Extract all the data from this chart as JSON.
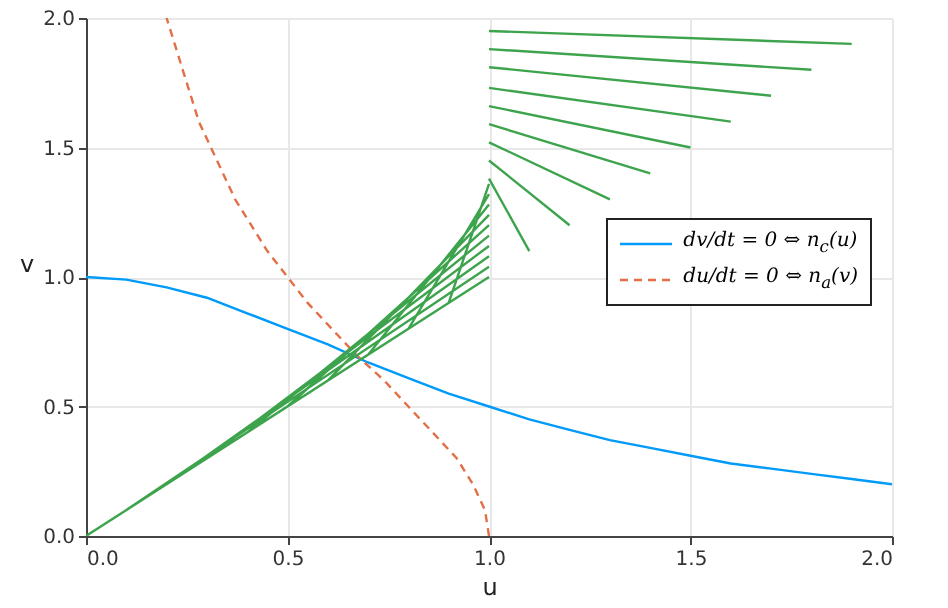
{
  "chart_data": {
    "type": "line",
    "xlabel": "u",
    "ylabel": "v",
    "xlim": [
      0,
      2
    ],
    "ylim": [
      0,
      2
    ],
    "xticks": [
      {
        "value": 0,
        "label": "0.0"
      },
      {
        "value": 0.5,
        "label": "0.5"
      },
      {
        "value": 1,
        "label": "1.0"
      },
      {
        "value": 1.5,
        "label": "1.5"
      },
      {
        "value": 2,
        "label": "2.0"
      }
    ],
    "yticks": [
      {
        "value": 0,
        "label": "0.0"
      },
      {
        "value": 0.5,
        "label": "0.5"
      },
      {
        "value": 1,
        "label": "1.0"
      },
      {
        "value": 1.5,
        "label": "1.5"
      },
      {
        "value": 2,
        "label": "2.0"
      }
    ],
    "grid": true,
    "legend": "right",
    "marker": "none",
    "series": [
      {
        "name": "dv/dt = 0 ⇔ n$_{c}$(u)",
        "color": "#009af9",
        "line_style": "solid",
        "x": [
          0,
          0.1,
          0.2,
          0.3,
          0.4,
          0.5,
          0.6,
          0.7,
          0.8,
          0.9,
          1.0,
          1.1,
          1.2,
          1.3,
          1.4,
          1.5,
          1.6,
          1.7,
          1.8,
          1.9,
          2.0
        ],
        "values": [
          1.0,
          0.99,
          0.96,
          0.92,
          0.86,
          0.8,
          0.74,
          0.67,
          0.61,
          0.55,
          0.5,
          0.45,
          0.41,
          0.37,
          0.34,
          0.31,
          0.28,
          0.26,
          0.24,
          0.22,
          0.2
        ]
      },
      {
        "name": "du/dt = 0 ⇔ n$_{a}$(v)",
        "color": "#e26f46",
        "line_style": "dashed",
        "x": [
          1.0,
          0.99,
          0.96,
          0.92,
          0.86,
          0.8,
          0.74,
          0.67,
          0.61,
          0.55,
          0.5,
          0.45,
          0.41,
          0.37,
          0.34,
          0.31,
          0.28,
          0.26,
          0.24,
          0.22,
          0.2
        ],
        "values": [
          0,
          0.1,
          0.2,
          0.3,
          0.4,
          0.5,
          0.6,
          0.7,
          0.8,
          0.9,
          1.0,
          1.1,
          1.2,
          1.3,
          1.4,
          1.5,
          1.6,
          1.7,
          1.8,
          1.9,
          2.0
        ]
      },
      {
        "color": "#3da44d",
        "line_style": "solid",
        "x": [
          0,
          1,
          null,
          0.1,
          1,
          null,
          0.2,
          1,
          null,
          0.3,
          1,
          null,
          0.4,
          1,
          null,
          0.5,
          1,
          null,
          0.6,
          1,
          null,
          0.7,
          1,
          null,
          0.8,
          1,
          null,
          0.9,
          1,
          null,
          1.1,
          1,
          null,
          1.2,
          1,
          null,
          1.3,
          1,
          null,
          1.4,
          1,
          null,
          1.5,
          1,
          null,
          1.6,
          1,
          null,
          1.7,
          1,
          null,
          1.8,
          1,
          null,
          1.9,
          1
        ],
        "values": [
          0,
          1.0,
          null,
          0.1,
          1.04,
          null,
          0.2,
          1.08,
          null,
          0.3,
          1.12,
          null,
          0.4,
          1.16,
          null,
          0.5,
          1.2,
          null,
          0.6,
          1.24,
          null,
          0.7,
          1.28,
          null,
          0.8,
          1.32,
          null,
          0.9,
          1.36,
          null,
          1.1,
          1.38,
          null,
          1.2,
          1.45,
          null,
          1.3,
          1.52,
          null,
          1.4,
          1.59,
          null,
          1.5,
          1.66,
          null,
          1.6,
          1.73,
          null,
          1.7,
          1.81,
          null,
          1.8,
          1.88,
          null,
          1.9,
          1.95
        ]
      }
    ]
  }
}
